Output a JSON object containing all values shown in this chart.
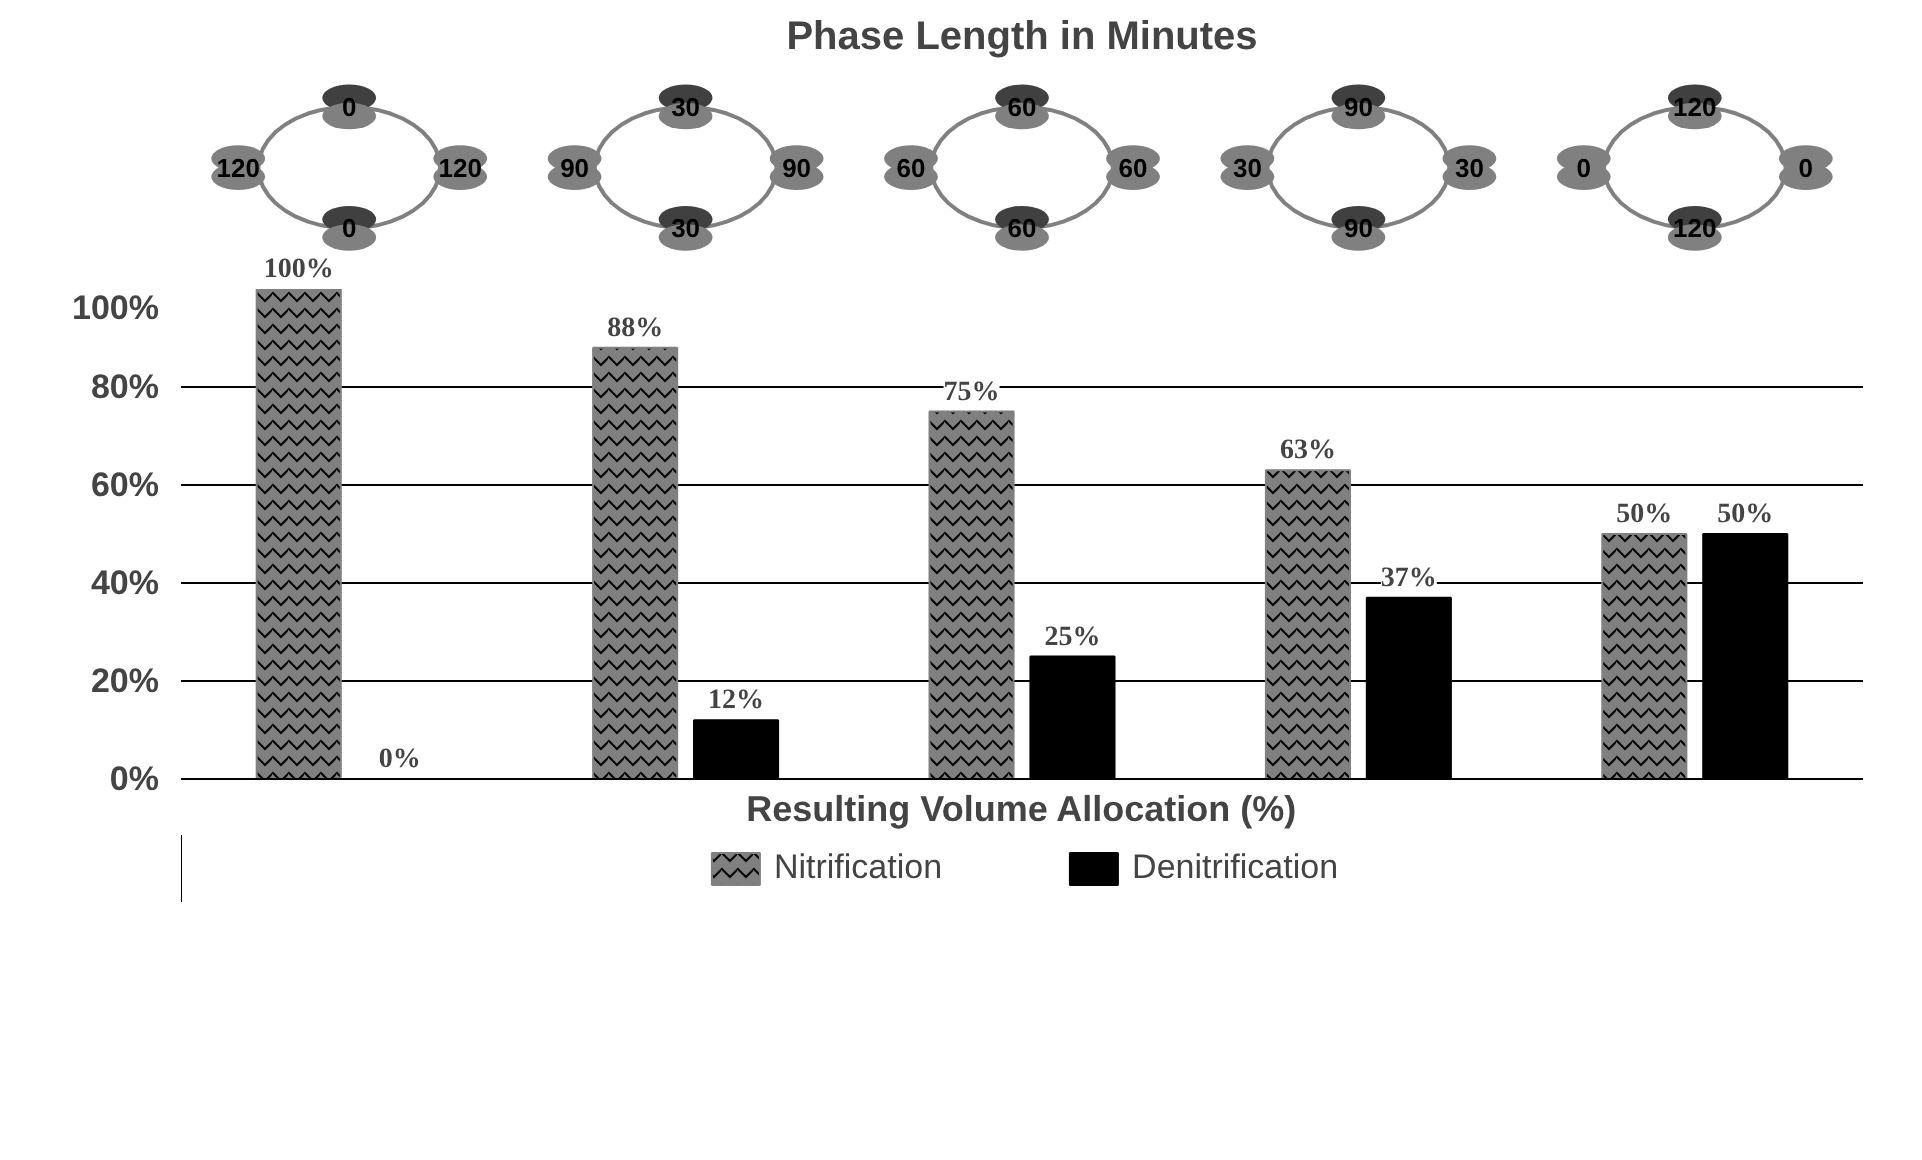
{
  "chart_data": {
    "type": "bar",
    "title": "Phase Length in Minutes",
    "xlabel": "Resulting Volume Allocation (%)",
    "categories": [
      null,
      null,
      null,
      null,
      null
    ],
    "series": [
      {
        "name": "Nitrification",
        "color": "#808080",
        "values": [
          100,
          88,
          75,
          63,
          50
        ],
        "value_labels": [
          "100%",
          "88%",
          "75%",
          "63%",
          "50%"
        ]
      },
      {
        "name": "Denitrification",
        "color": "#000000",
        "values": [
          0,
          12,
          25,
          37,
          50
        ],
        "value_labels": [
          "0%",
          "12%",
          "25%",
          "37%",
          "50%"
        ]
      }
    ],
    "ylim": [
      0,
      100
    ],
    "yticks": [
      {
        "value": 0,
        "label": "0%"
      },
      {
        "value": 20,
        "label": "20%"
      },
      {
        "value": 40,
        "label": "40%"
      },
      {
        "value": 60,
        "label": "60%"
      },
      {
        "value": 80,
        "label": "80%"
      },
      {
        "value": 100,
        "label": "100%"
      }
    ],
    "grid": "y",
    "legend": "bottom",
    "annotations": [
      "0",
      "120",
      "120",
      "0",
      "30",
      "90",
      "90",
      "30",
      "60",
      "60",
      "60",
      "60",
      "90",
      "30",
      "30",
      "90",
      "120",
      "0",
      "0",
      "120"
    ]
  }
}
